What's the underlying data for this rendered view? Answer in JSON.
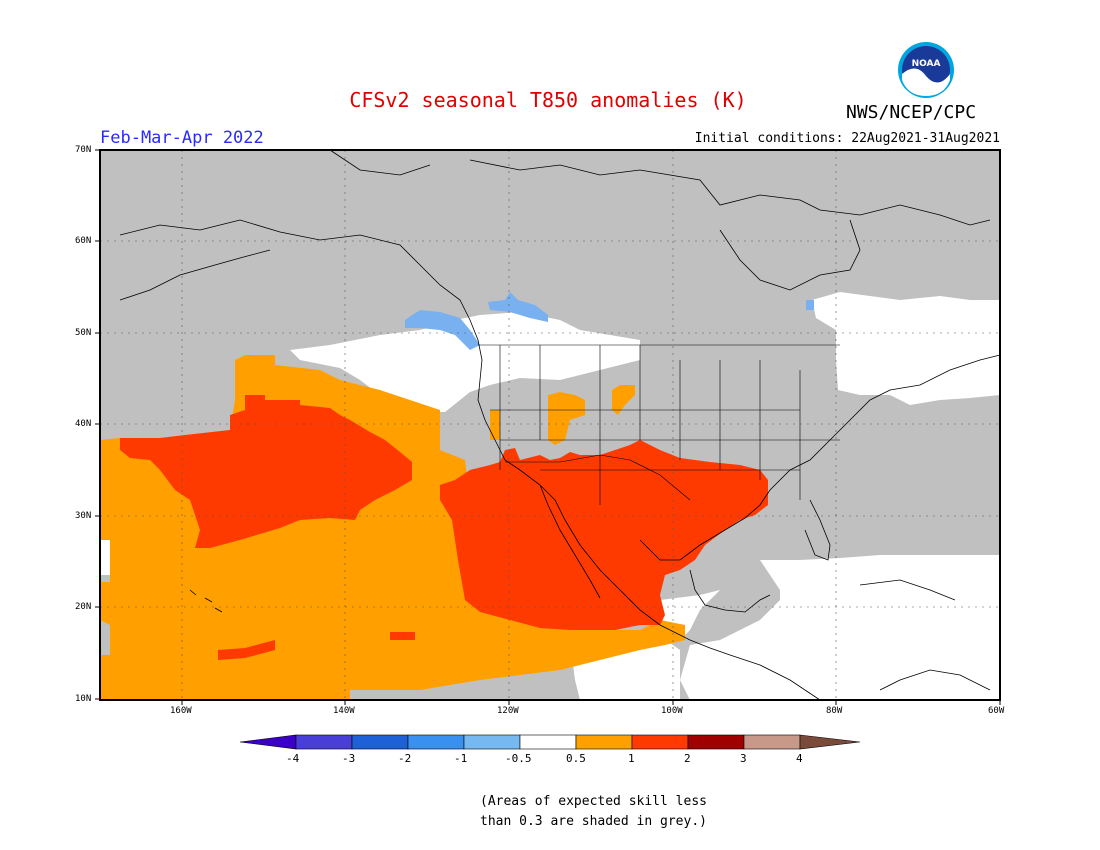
{
  "title": "CFSv2 seasonal T850 anomalies (K)",
  "period": "Feb-Mar-Apr 2022",
  "initial_conditions": "Initial conditions: 22Aug2021-31Aug2021",
  "agency": "NWS/NCEP/CPC",
  "logo_text": "NOAA",
  "lat_labels": [
    "70N",
    "60N",
    "50N",
    "40N",
    "30N",
    "20N",
    "10N"
  ],
  "lon_labels": [
    "160W",
    "140W",
    "120W",
    "100W",
    "80W",
    "60W"
  ],
  "colorbar": {
    "labels": [
      "-4",
      "-3",
      "-2",
      "-1",
      "-0.5",
      "0.5",
      "1",
      "2",
      "3",
      "4"
    ],
    "colors": [
      "#3a00c8",
      "#4a3ed8",
      "#1e60d8",
      "#3a90f0",
      "#78b8f0",
      "#ffffff",
      "#ffa000",
      "#ff3a00",
      "#a00000",
      "#c89888",
      "#7a4a3a"
    ]
  },
  "note_line1": "(Areas of expected skill less",
  "note_line2": "than 0.3 are shaded in grey.)",
  "map_colors": {
    "grey": "#c0c0c0",
    "white": "#ffffff",
    "orange": "#ffa000",
    "red": "#ff3a00",
    "light_blue": "#78b0f0"
  }
}
